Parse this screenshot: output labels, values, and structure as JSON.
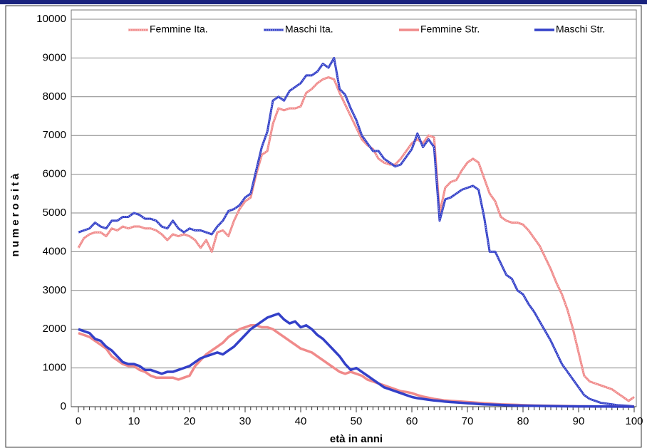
{
  "chart_data": {
    "type": "line",
    "x_label": "età in anni",
    "y_label": "numerosità",
    "x": [
      0,
      1,
      2,
      3,
      4,
      5,
      6,
      7,
      8,
      9,
      10,
      11,
      12,
      13,
      14,
      15,
      16,
      17,
      18,
      19,
      20,
      21,
      22,
      23,
      24,
      25,
      26,
      27,
      28,
      29,
      30,
      31,
      32,
      33,
      34,
      35,
      36,
      37,
      38,
      39,
      40,
      41,
      42,
      43,
      44,
      45,
      46,
      47,
      48,
      49,
      50,
      51,
      52,
      53,
      54,
      55,
      56,
      57,
      58,
      59,
      60,
      61,
      62,
      63,
      64,
      65,
      66,
      67,
      68,
      69,
      70,
      71,
      72,
      73,
      74,
      75,
      76,
      77,
      78,
      79,
      80,
      81,
      82,
      83,
      84,
      85,
      86,
      87,
      88,
      89,
      90,
      91,
      92,
      93,
      94,
      95,
      96,
      97,
      98,
      99,
      100
    ],
    "series": [
      {
        "name": "Femmine Ita.",
        "color": "#f08a8a",
        "linestyle": "dotted",
        "values": [
          4100,
          4350,
          4450,
          4500,
          4500,
          4400,
          4600,
          4550,
          4650,
          4600,
          4650,
          4650,
          4600,
          4600,
          4550,
          4450,
          4300,
          4450,
          4400,
          4450,
          4400,
          4300,
          4100,
          4300,
          4000,
          4500,
          4550,
          4400,
          4800,
          5100,
          5300,
          5400,
          6000,
          6500,
          6600,
          7300,
          7700,
          7650,
          7700,
          7700,
          7750,
          8100,
          8200,
          8350,
          8450,
          8500,
          8450,
          8100,
          7800,
          7500,
          7200,
          6900,
          6750,
          6650,
          6400,
          6300,
          6250,
          6250,
          6400,
          6600,
          6800,
          6900,
          6800,
          7000,
          6950,
          5000,
          5650,
          5800,
          5850,
          6100,
          6300,
          6400,
          6300,
          5900,
          5500,
          5300,
          4900,
          4800,
          4750,
          4750,
          4700,
          4550,
          4350,
          4150,
          3850,
          3550,
          3200,
          2900,
          2500,
          2000,
          1400,
          800,
          650,
          600,
          550,
          500,
          450,
          350,
          250,
          150,
          250
        ]
      },
      {
        "name": "Maschi Ita.",
        "color": "#3340c8",
        "linestyle": "dotted",
        "values": [
          4500,
          4550,
          4600,
          4750,
          4650,
          4600,
          4800,
          4800,
          4900,
          4900,
          5000,
          4950,
          4850,
          4850,
          4800,
          4650,
          4600,
          4800,
          4600,
          4500,
          4600,
          4550,
          4550,
          4500,
          4450,
          4650,
          4800,
          5050,
          5100,
          5200,
          5400,
          5500,
          6100,
          6700,
          7100,
          7900,
          8000,
          7900,
          8150,
          8250,
          8350,
          8550,
          8550,
          8650,
          8850,
          8750,
          9000,
          8200,
          8050,
          7700,
          7400,
          7000,
          6800,
          6600,
          6600,
          6400,
          6300,
          6200,
          6250,
          6450,
          6650,
          7050,
          6700,
          6900,
          6700,
          4800,
          5350,
          5400,
          5500,
          5600,
          5650,
          5700,
          5600,
          4900,
          4000,
          4000,
          3700,
          3400,
          3300,
          3000,
          2900,
          2650,
          2450,
          2200,
          1950,
          1700,
          1400,
          1100,
          900,
          700,
          500,
          300,
          200,
          150,
          100,
          80,
          60,
          40,
          30,
          20,
          10
        ]
      },
      {
        "name": "Femmine Str.",
        "color": "#f08a8a",
        "linestyle": "solid",
        "values": [
          1900,
          1850,
          1800,
          1700,
          1600,
          1500,
          1300,
          1200,
          1100,
          1050,
          1050,
          950,
          900,
          800,
          750,
          750,
          750,
          750,
          700,
          750,
          800,
          1050,
          1200,
          1350,
          1450,
          1550,
          1650,
          1800,
          1900,
          2000,
          2050,
          2100,
          2100,
          2050,
          2050,
          2000,
          1900,
          1800,
          1700,
          1600,
          1500,
          1450,
          1400,
          1300,
          1200,
          1100,
          1000,
          900,
          850,
          900,
          850,
          800,
          700,
          650,
          600,
          550,
          500,
          450,
          400,
          380,
          350,
          300,
          260,
          230,
          200,
          180,
          160,
          150,
          140,
          130,
          120,
          110,
          100,
          90,
          80,
          70,
          60,
          55,
          50,
          45,
          40,
          35,
          30,
          28,
          25,
          22,
          20,
          18,
          15,
          12,
          10,
          9,
          8,
          7,
          6,
          5,
          5,
          4,
          3,
          3,
          2
        ]
      },
      {
        "name": "Maschi Str.",
        "color": "#3340c8",
        "linestyle": "solid",
        "values": [
          2000,
          1950,
          1900,
          1750,
          1700,
          1550,
          1450,
          1300,
          1150,
          1100,
          1100,
          1050,
          950,
          950,
          900,
          850,
          900,
          900,
          950,
          1000,
          1050,
          1150,
          1250,
          1300,
          1350,
          1400,
          1350,
          1450,
          1550,
          1700,
          1850,
          2000,
          2100,
          2200,
          2300,
          2350,
          2400,
          2250,
          2150,
          2200,
          2050,
          2100,
          2000,
          1850,
          1750,
          1600,
          1450,
          1300,
          1100,
          950,
          1000,
          900,
          800,
          700,
          600,
          500,
          450,
          400,
          350,
          300,
          250,
          220,
          200,
          180,
          160,
          150,
          130,
          120,
          110,
          100,
          90,
          80,
          70,
          60,
          55,
          50,
          45,
          40,
          35,
          30,
          28,
          25,
          22,
          20,
          18,
          15,
          13,
          12,
          10,
          9,
          8,
          7,
          6,
          5,
          5,
          4,
          3,
          3,
          2,
          2,
          1
        ]
      }
    ],
    "xlim": [
      0,
      100
    ],
    "xticks": [
      0,
      10,
      20,
      30,
      40,
      50,
      60,
      70,
      80,
      90,
      100
    ],
    "ylim": [
      0,
      10000
    ],
    "yticks": [
      0,
      1000,
      2000,
      3000,
      4000,
      5000,
      6000,
      7000,
      8000,
      9000,
      10000
    ],
    "grid": true,
    "legend": "top"
  }
}
